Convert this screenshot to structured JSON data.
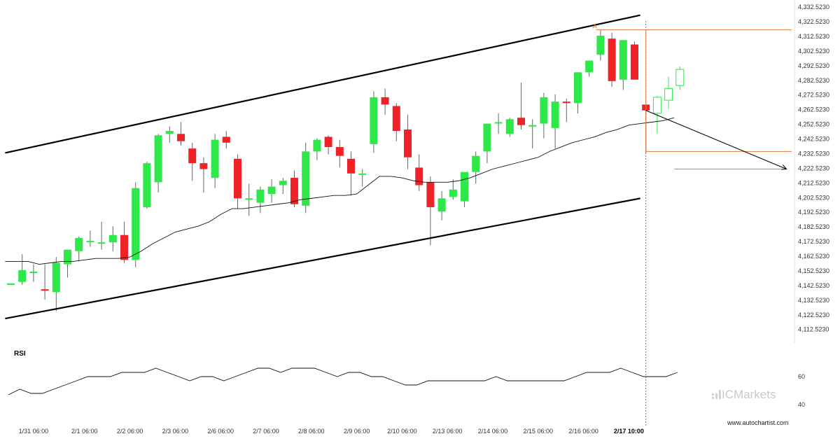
{
  "colors": {
    "up": "#2ee84a",
    "down": "#ee2227",
    "wick": "#666666",
    "channel": "#000000",
    "ma": "#111111",
    "rsi": "#111111",
    "level": "#e07840",
    "forecast_arrow": "#000000",
    "projection_candle": "#2ee84a",
    "brand": "#c9c9c9"
  },
  "chart_data": {
    "type": "candlestick",
    "title": "",
    "ylim": [
      4110,
      4334
    ],
    "y_ticks": [
      "4,332.5230",
      "4,322.5230",
      "4,312.5230",
      "4,302.5230",
      "4,292.5230",
      "4,282.5230",
      "4,272.5230",
      "4,262.5230",
      "4,252.5230",
      "4,242.5230",
      "4,232.5230",
      "4,222.5230",
      "4,212.5230",
      "4,202.5230",
      "4,192.5230",
      "4,182.5230",
      "4,172.5230",
      "4,162.5230",
      "4,152.5230",
      "4,142.5230",
      "4,132.5230",
      "4,122.5230",
      "4,112.5230"
    ],
    "y_tick_values": [
      4332.523,
      4322.523,
      4312.523,
      4302.523,
      4292.523,
      4282.523,
      4272.523,
      4262.523,
      4252.523,
      4242.523,
      4232.523,
      4222.523,
      4212.523,
      4202.523,
      4192.523,
      4182.523,
      4172.523,
      4162.523,
      4152.523,
      4142.523,
      4132.523,
      4122.523,
      4112.523
    ],
    "x_labels": [
      "1/31 06:00",
      "2/1 06:00",
      "2/2 06:00",
      "2/3 06:00",
      "2/6 06:00",
      "2/7 06:00",
      "2/8 06:00",
      "2/9 06:00",
      "2/10 06:00",
      "2/13 06:00",
      "2/14 06:00",
      "2/15 06:00",
      "2/16 06:00",
      "2/17 10:00"
    ],
    "x_label_index": [
      2,
      6.5,
      10.5,
      14.5,
      18.5,
      22.5,
      26.5,
      30.5,
      34.5,
      38.5,
      42.5,
      46.5,
      50.5,
      54.5
    ],
    "highlight_label": "2/17 10:00",
    "candles": [
      {
        "o": 4143,
        "h": 4143,
        "l": 4143,
        "c": 4144
      },
      {
        "o": 4145,
        "h": 4164,
        "l": 4143,
        "c": 4153
      },
      {
        "o": 4151,
        "h": 4157,
        "l": 4145,
        "c": 4152
      },
      {
        "o": 4140,
        "h": 4157,
        "l": 4133,
        "c": 4139
      },
      {
        "o": 4138,
        "h": 4162,
        "l": 4125,
        "c": 4158
      },
      {
        "o": 4157,
        "h": 4167,
        "l": 4148,
        "c": 4167
      },
      {
        "o": 4166,
        "h": 4176,
        "l": 4159,
        "c": 4175
      },
      {
        "o": 4173,
        "h": 4180,
        "l": 4169,
        "c": 4173
      },
      {
        "o": 4172,
        "h": 4186,
        "l": 4167,
        "c": 4172
      },
      {
        "o": 4172,
        "h": 4183,
        "l": 4166,
        "c": 4177
      },
      {
        "o": 4177,
        "h": 4186,
        "l": 4158,
        "c": 4160
      },
      {
        "o": 4160,
        "h": 4213,
        "l": 4155,
        "c": 4209
      },
      {
        "o": 4196,
        "h": 4227,
        "l": 4195,
        "c": 4226
      },
      {
        "o": 4213,
        "h": 4246,
        "l": 4206,
        "c": 4245
      },
      {
        "o": 4246,
        "h": 4251,
        "l": 4240,
        "c": 4248
      },
      {
        "o": 4246,
        "h": 4254,
        "l": 4238,
        "c": 4241
      },
      {
        "o": 4236,
        "h": 4240,
        "l": 4214,
        "c": 4226
      },
      {
        "o": 4226,
        "h": 4230,
        "l": 4206,
        "c": 4222
      },
      {
        "o": 4216,
        "h": 4246,
        "l": 4209,
        "c": 4242
      },
      {
        "o": 4244,
        "h": 4248,
        "l": 4236,
        "c": 4240
      },
      {
        "o": 4229,
        "h": 4232,
        "l": 4195,
        "c": 4202
      },
      {
        "o": 4202,
        "h": 4212,
        "l": 4190,
        "c": 4202
      },
      {
        "o": 4199,
        "h": 4210,
        "l": 4192,
        "c": 4208
      },
      {
        "o": 4205,
        "h": 4215,
        "l": 4199,
        "c": 4210
      },
      {
        "o": 4211,
        "h": 4216,
        "l": 4205,
        "c": 4214
      },
      {
        "o": 4216,
        "h": 4221,
        "l": 4196,
        "c": 4198
      },
      {
        "o": 4197,
        "h": 4240,
        "l": 4192,
        "c": 4234
      },
      {
        "o": 4234,
        "h": 4243,
        "l": 4228,
        "c": 4242
      },
      {
        "o": 4244,
        "h": 4245,
        "l": 4232,
        "c": 4237
      },
      {
        "o": 4237,
        "h": 4242,
        "l": 4223,
        "c": 4231
      },
      {
        "o": 4229,
        "h": 4234,
        "l": 4204,
        "c": 4219
      },
      {
        "o": 4219,
        "h": 4222,
        "l": 4210,
        "c": 4219
      },
      {
        "o": 4239,
        "h": 4275,
        "l": 4233,
        "c": 4271
      },
      {
        "o": 4271,
        "h": 4277,
        "l": 4259,
        "c": 4266
      },
      {
        "o": 4265,
        "h": 4267,
        "l": 4241,
        "c": 4248
      },
      {
        "o": 4249,
        "h": 4259,
        "l": 4222,
        "c": 4230
      },
      {
        "o": 4223,
        "h": 4232,
        "l": 4207,
        "c": 4211
      },
      {
        "o": 4213,
        "h": 4217,
        "l": 4170,
        "c": 4196
      },
      {
        "o": 4193,
        "h": 4207,
        "l": 4187,
        "c": 4202
      },
      {
        "o": 4203,
        "h": 4215,
        "l": 4201,
        "c": 4208
      },
      {
        "o": 4200,
        "h": 4219,
        "l": 4196,
        "c": 4220
      },
      {
        "o": 4220,
        "h": 4234,
        "l": 4212,
        "c": 4231
      },
      {
        "o": 4234,
        "h": 4253,
        "l": 4226,
        "c": 4253
      },
      {
        "o": 4254,
        "h": 4260,
        "l": 4246,
        "c": 4254
      },
      {
        "o": 4246,
        "h": 4257,
        "l": 4244,
        "c": 4256
      },
      {
        "o": 4257,
        "h": 4281,
        "l": 4249,
        "c": 4252
      },
      {
        "o": 4251,
        "h": 4256,
        "l": 4236,
        "c": 4252
      },
      {
        "o": 4253,
        "h": 4274,
        "l": 4243,
        "c": 4271
      },
      {
        "o": 4250,
        "h": 4273,
        "l": 4236,
        "c": 4268
      },
      {
        "o": 4268,
        "h": 4270,
        "l": 4254,
        "c": 4267
      },
      {
        "o": 4267,
        "h": 4288,
        "l": 4260,
        "c": 4288
      },
      {
        "o": 4288,
        "h": 4296,
        "l": 4285,
        "c": 4296
      },
      {
        "o": 4300,
        "h": 4317,
        "l": 4296,
        "c": 4313
      },
      {
        "o": 4311,
        "h": 4315,
        "l": 4278,
        "c": 4282
      },
      {
        "o": 4283,
        "h": 4309,
        "l": 4276,
        "c": 4310
      },
      {
        "o": 4307,
        "h": 4309,
        "l": 4283,
        "c": 4283
      }
    ],
    "breakout_candle": {
      "o": 4266,
      "h": 4266,
      "l": 4233,
      "c": 4262
    },
    "projection_candles": [
      {
        "o": 4260,
        "h": 4272,
        "l": 4246,
        "c": 4271
      },
      {
        "o": 4269,
        "h": 4285,
        "l": 4263,
        "c": 4277
      },
      {
        "o": 4279,
        "h": 4292,
        "l": 4276,
        "c": 4290
      }
    ],
    "moving_average": [
      4159,
      4159,
      4159,
      4157,
      4158,
      4159,
      4159,
      4160,
      4161,
      4161,
      4161,
      4162,
      4166,
      4171,
      4175,
      4179,
      4181,
      4183,
      4186,
      4191,
      4195,
      4195,
      4196,
      4197,
      4198,
      4199,
      4201,
      4202,
      4203,
      4204,
      4204,
      4205,
      4211,
      4217,
      4217,
      4216,
      4214,
      4213,
      4213,
      4213,
      4214,
      4216,
      4219,
      4222,
      4224,
      4226,
      4228,
      4230,
      4234,
      4237,
      4240,
      4242,
      4244,
      4247,
      4249,
      4252,
      4253,
      4254,
      4255,
      4257
    ],
    "channel_upper": {
      "from": {
        "i": -0.5,
        "v": 4233
      },
      "to": {
        "i": 55.5,
        "v": 4327
      }
    },
    "channel_lower": {
      "from": {
        "i": -0.5,
        "v": 4120
      },
      "to": {
        "i": 55.5,
        "v": 4202
      }
    },
    "level_high": 4317,
    "level_low": 4234,
    "level_target": 4222,
    "forecast_arrow": {
      "from": {
        "i": 56,
        "v": 4262
      },
      "to": {
        "i": 68.4,
        "v": 4222
      }
    },
    "pattern_point_label": "A",
    "rsi": {
      "title": "RSI",
      "ticks": [
        "60",
        "40"
      ],
      "tick_values": [
        60,
        40
      ],
      "ylim": [
        32,
        72
      ],
      "values": [
        47,
        51,
        48,
        48,
        51,
        54,
        57,
        60,
        60,
        60,
        63,
        63,
        63,
        66,
        63,
        60,
        57,
        60,
        60,
        57,
        60,
        63,
        66,
        66,
        63,
        66,
        66,
        66,
        63,
        60,
        63,
        63,
        60,
        60,
        57,
        54,
        54,
        57,
        57,
        57,
        57,
        57,
        57,
        60,
        57,
        57,
        57,
        57,
        57,
        57,
        60,
        63,
        63,
        63,
        66,
        63,
        60,
        60,
        60,
        63
      ]
    }
  },
  "watermark": {
    "brand": "ICMarkets",
    "site": "www.autochartist.com"
  }
}
